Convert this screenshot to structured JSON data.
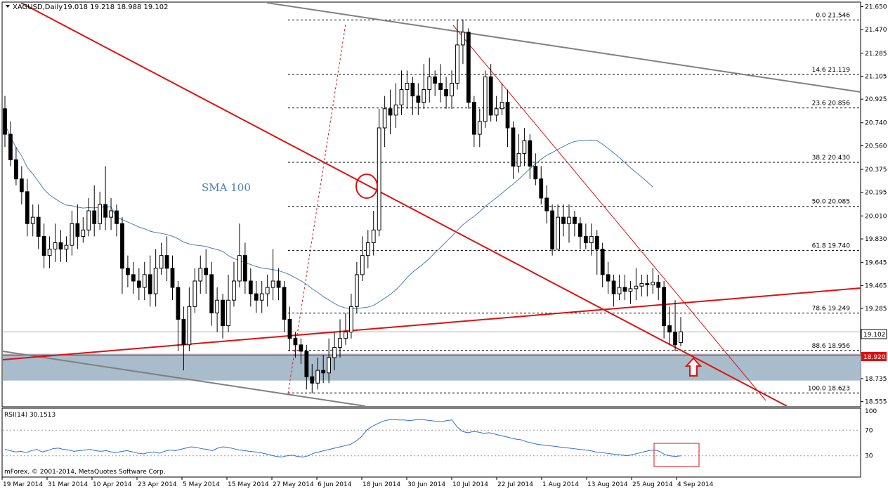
{
  "header": {
    "symbol_label": "XAGUSD,Daily",
    "ohlc_label": "19.018 19.218 18.988 19.102"
  },
  "annotation": {
    "sma_label": "SMA 100"
  },
  "copyright": "mForex, © 2001-2014, MetaQuotes Software Corp.",
  "price_labels": {
    "current": "19.102",
    "support": "18.920"
  },
  "colors": {
    "bull_body": "#ffffff",
    "bear_body": "#000000",
    "trendline_red": "#dd1111",
    "trendline_gray": "#808080",
    "sma": "#4a7fb0",
    "zone": "#a8bccb",
    "rsi_line": "#2a6fd0"
  },
  "chart_data": [
    {
      "type": "candlestick",
      "instrument": "XAGUSD",
      "timeframe": "Daily",
      "ylim": [
        18.52,
        21.68
      ],
      "y_ticks": [
        "21.650",
        "21.470",
        "21.285",
        "21.105",
        "20.925",
        "20.740",
        "20.560",
        "20.375",
        "20.195",
        "20.010",
        "19.830",
        "19.645",
        "19.465",
        "19.285",
        "19.100",
        "18.920",
        "18.735",
        "18.555"
      ],
      "x_labels": [
        "19 Mar 2014",
        "31 Mar 2014",
        "10 Apr 2014",
        "23 Apr 2014",
        "5 May 2014",
        "15 May 2014",
        "27 May 2014",
        "6 Jun 2014",
        "18 Jun 2014",
        "30 Jun 2014",
        "10 Jul 2014",
        "22 Jul 2014",
        "1 Aug 2014",
        "13 Aug 2014",
        "25 Aug 2014",
        "4 Sep 2014"
      ],
      "fibonacci": [
        {
          "level": "0.0",
          "price": "21.546"
        },
        {
          "level": "14.6",
          "price": "21.119"
        },
        {
          "level": "23.6",
          "price": "20.856"
        },
        {
          "level": "38.2",
          "price": "20.430"
        },
        {
          "level": "50.0",
          "price": "20.085"
        },
        {
          "level": "61.8",
          "price": "19.740"
        },
        {
          "level": "78.6",
          "price": "19.249"
        },
        {
          "level": "88.6",
          "price": "18.956"
        },
        {
          "level": "100.0",
          "price": "18.623"
        }
      ],
      "support_zone": [
        18.72,
        18.93
      ],
      "current_price": 19.102,
      "support_price": 18.92,
      "candles": [
        [
          20.85,
          20.65,
          20.95,
          20.55
        ],
        [
          20.65,
          20.45,
          20.75,
          20.4
        ],
        [
          20.45,
          20.3,
          20.55,
          20.25
        ],
        [
          20.3,
          20.2,
          20.4,
          20.1
        ],
        [
          20.2,
          19.95,
          20.3,
          19.85
        ],
        [
          19.95,
          20.0,
          20.1,
          19.85
        ],
        [
          20.0,
          19.85,
          20.1,
          19.75
        ],
        [
          19.85,
          19.7,
          19.95,
          19.6
        ],
        [
          19.7,
          19.75,
          19.85,
          19.6
        ],
        [
          19.75,
          19.8,
          19.95,
          19.65
        ],
        [
          19.8,
          19.75,
          19.9,
          19.65
        ],
        [
          19.75,
          19.78,
          19.85,
          19.65
        ],
        [
          19.78,
          19.95,
          20.05,
          19.7
        ],
        [
          19.95,
          19.85,
          20.1,
          19.75
        ],
        [
          19.85,
          19.9,
          20.0,
          19.8
        ],
        [
          19.9,
          20.05,
          20.15,
          19.85
        ],
        [
          20.05,
          19.95,
          20.25,
          19.85
        ],
        [
          19.95,
          20.1,
          20.2,
          19.9
        ],
        [
          20.1,
          20.0,
          20.4,
          19.9
        ],
        [
          20.0,
          20.05,
          20.15,
          19.9
        ],
        [
          20.05,
          19.95,
          20.1,
          19.85
        ],
        [
          19.95,
          19.6,
          20.0,
          19.4
        ],
        [
          19.6,
          19.55,
          19.7,
          19.45
        ],
        [
          19.55,
          19.5,
          19.65,
          19.4
        ],
        [
          19.5,
          19.45,
          19.6,
          19.35
        ],
        [
          19.45,
          19.55,
          19.65,
          19.35
        ],
        [
          19.55,
          19.4,
          19.7,
          19.3
        ],
        [
          19.4,
          19.6,
          19.75,
          19.3
        ],
        [
          19.6,
          19.7,
          19.8,
          19.55
        ],
        [
          19.7,
          19.6,
          19.85,
          19.5
        ],
        [
          19.6,
          19.45,
          19.7,
          19.35
        ],
        [
          19.45,
          19.2,
          19.5,
          18.95
        ],
        [
          19.2,
          19.0,
          19.3,
          18.8
        ],
        [
          19.0,
          19.3,
          19.45,
          18.95
        ],
        [
          19.3,
          19.5,
          19.6,
          19.25
        ],
        [
          19.5,
          19.6,
          19.7,
          19.4
        ],
        [
          19.6,
          19.55,
          19.75,
          19.4
        ],
        [
          19.55,
          19.25,
          19.65,
          19.15
        ],
        [
          19.25,
          19.35,
          19.45,
          19.1
        ],
        [
          19.35,
          19.15,
          19.4,
          19.05
        ],
        [
          19.15,
          19.35,
          19.55,
          19.1
        ],
        [
          19.35,
          19.5,
          19.65,
          19.3
        ],
        [
          19.5,
          19.7,
          19.95,
          19.45
        ],
        [
          19.7,
          19.5,
          19.8,
          19.4
        ],
        [
          19.5,
          19.4,
          19.6,
          19.3
        ],
        [
          19.4,
          19.35,
          19.5,
          19.25
        ],
        [
          19.35,
          19.4,
          19.5,
          19.25
        ],
        [
          19.4,
          19.45,
          19.55,
          19.3
        ],
        [
          19.45,
          19.5,
          19.75,
          19.35
        ],
        [
          19.5,
          19.45,
          19.6,
          19.35
        ],
        [
          19.45,
          19.2,
          19.5,
          19.1
        ],
        [
          19.2,
          19.05,
          19.3,
          18.95
        ],
        [
          19.05,
          19.0,
          19.1,
          18.9
        ],
        [
          19.0,
          18.95,
          19.05,
          18.85
        ],
        [
          18.95,
          18.75,
          19.0,
          18.65
        ],
        [
          18.75,
          18.7,
          18.85,
          18.62
        ],
        [
          18.7,
          18.8,
          18.9,
          18.65
        ],
        [
          18.8,
          18.78,
          18.92,
          18.7
        ],
        [
          18.78,
          18.9,
          19.05,
          18.7
        ],
        [
          18.9,
          18.98,
          19.1,
          18.8
        ],
        [
          18.98,
          19.05,
          19.2,
          18.9
        ],
        [
          19.05,
          19.1,
          19.25,
          19.0
        ],
        [
          19.1,
          19.3,
          19.4,
          19.05
        ],
        [
          19.3,
          19.55,
          19.65,
          19.25
        ],
        [
          19.55,
          19.7,
          19.85,
          19.5
        ],
        [
          19.7,
          19.8,
          19.9,
          19.6
        ],
        [
          19.8,
          19.9,
          20.05,
          19.7
        ],
        [
          19.9,
          20.7,
          20.85,
          19.85
        ],
        [
          20.7,
          20.85,
          20.95,
          20.55
        ],
        [
          20.85,
          20.8,
          21.0,
          20.65
        ],
        [
          20.8,
          20.88,
          21.05,
          20.7
        ],
        [
          20.88,
          21.0,
          21.15,
          20.8
        ],
        [
          21.0,
          21.05,
          21.15,
          20.85
        ],
        [
          21.05,
          20.95,
          21.1,
          20.8
        ],
        [
          20.95,
          20.9,
          21.05,
          20.8
        ],
        [
          20.9,
          21.0,
          21.2,
          20.85
        ],
        [
          21.0,
          21.1,
          21.25,
          20.9
        ],
        [
          21.1,
          21.05,
          21.15,
          20.95
        ],
        [
          21.05,
          21.0,
          21.2,
          20.9
        ],
        [
          21.0,
          20.95,
          21.1,
          20.85
        ],
        [
          20.95,
          21.05,
          21.15,
          20.85
        ],
        [
          21.05,
          21.35,
          21.55,
          21.0
        ],
        [
          21.35,
          21.45,
          21.55,
          21.2
        ],
        [
          21.45,
          20.9,
          21.48,
          20.85
        ],
        [
          20.9,
          20.65,
          20.95,
          20.55
        ],
        [
          20.65,
          20.75,
          20.85,
          20.55
        ],
        [
          20.75,
          21.1,
          21.15,
          20.7
        ],
        [
          21.1,
          20.8,
          21.2,
          20.75
        ],
        [
          20.8,
          20.85,
          20.95,
          20.75
        ],
        [
          20.85,
          20.9,
          21.05,
          20.8
        ],
        [
          20.9,
          20.7,
          21.0,
          20.55
        ],
        [
          20.7,
          20.4,
          20.75,
          20.3
        ],
        [
          20.4,
          20.5,
          20.65,
          20.35
        ],
        [
          20.5,
          20.6,
          20.7,
          20.4
        ],
        [
          20.6,
          20.4,
          20.65,
          20.3
        ],
        [
          20.4,
          20.3,
          20.5,
          20.25
        ],
        [
          20.3,
          20.15,
          20.4,
          20.1
        ],
        [
          20.15,
          20.05,
          20.25,
          19.95
        ],
        [
          20.05,
          19.75,
          20.1,
          19.7
        ],
        [
          19.75,
          20.0,
          20.1,
          19.75
        ],
        [
          20.0,
          19.95,
          20.1,
          19.85
        ],
        [
          19.95,
          20.0,
          20.1,
          19.8
        ],
        [
          20.0,
          19.95,
          20.05,
          19.85
        ],
        [
          19.95,
          19.85,
          20.0,
          19.75
        ],
        [
          19.85,
          19.8,
          19.95,
          19.75
        ],
        [
          19.8,
          19.85,
          19.95,
          19.7
        ],
        [
          19.85,
          19.75,
          19.9,
          19.55
        ],
        [
          19.75,
          19.55,
          19.8,
          19.45
        ],
        [
          19.55,
          19.5,
          19.65,
          19.4
        ],
        [
          19.5,
          19.4,
          19.55,
          19.3
        ],
        [
          19.4,
          19.45,
          19.55,
          19.35
        ],
        [
          19.45,
          19.42,
          19.55,
          19.35
        ],
        [
          19.42,
          19.44,
          19.5,
          19.32
        ],
        [
          19.44,
          19.46,
          19.6,
          19.35
        ],
        [
          19.46,
          19.48,
          19.55,
          19.38
        ],
        [
          19.48,
          19.47,
          19.55,
          19.38
        ],
        [
          19.47,
          19.49,
          19.6,
          19.4
        ],
        [
          19.49,
          19.45,
          19.55,
          19.35
        ],
        [
          19.45,
          19.15,
          19.5,
          19.05
        ],
        [
          19.15,
          19.1,
          19.3,
          19.0
        ],
        [
          19.1,
          19.0,
          19.35,
          18.95
        ],
        [
          19.018,
          19.102,
          19.218,
          18.988
        ]
      ]
    },
    {
      "type": "line",
      "title": "RSI(14) 30.1513",
      "ylim": [
        0,
        100
      ],
      "y_ticks": [
        "100",
        "70",
        "30"
      ],
      "levels": [
        70,
        30
      ],
      "values": [
        40,
        38,
        36,
        37,
        35,
        38,
        40,
        36,
        38,
        41,
        42,
        40,
        39,
        37,
        38,
        39,
        40,
        38,
        37,
        38,
        36,
        35,
        37,
        38,
        36,
        34,
        33,
        35,
        36,
        34,
        37,
        39,
        38,
        40,
        42,
        44,
        43,
        41,
        40,
        38,
        42,
        44,
        43,
        41,
        39,
        38,
        37,
        36,
        35,
        33,
        31,
        29,
        28,
        30,
        31,
        29,
        28,
        30,
        34,
        36,
        38,
        40,
        42,
        44,
        46,
        48,
        53,
        60,
        70,
        76,
        80,
        84,
        86,
        87,
        86,
        86,
        85,
        86,
        87,
        86,
        85,
        84,
        83,
        85,
        86,
        75,
        68,
        66,
        68,
        67,
        65,
        66,
        64,
        62,
        60,
        58,
        56,
        55,
        52,
        50,
        48,
        47,
        46,
        45,
        44,
        43,
        42,
        41,
        40,
        39,
        38,
        36,
        35,
        34,
        33,
        32,
        31,
        30,
        32,
        34,
        36,
        38,
        39,
        37,
        32,
        30,
        29,
        30
      ]
    }
  ]
}
